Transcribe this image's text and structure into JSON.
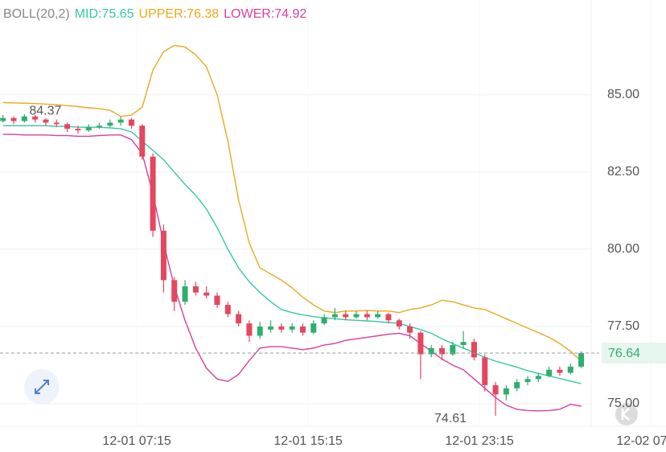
{
  "chart_data": {
    "type": "candlestick",
    "indicator_title": "BOLL(20,2)",
    "x": [
      1,
      1.5,
      2,
      2.5,
      3,
      3.5,
      4,
      4.5,
      5,
      5.5,
      6,
      6.5,
      7,
      7.5,
      8,
      8.5,
      9,
      9.5,
      10,
      10.5,
      11,
      11.5,
      12,
      12.5,
      13,
      13.5,
      14,
      14.5,
      15,
      15.5,
      16,
      16.5,
      17,
      17.5,
      18,
      18.5,
      19,
      19.5,
      20,
      20.5,
      21,
      21.5,
      22,
      22.5,
      23,
      23.5,
      24,
      24.5,
      25,
      25.5,
      26,
      26.5,
      27,
      27.5,
      28
    ],
    "open": [
      84.15,
      84.25,
      84.15,
      84.3,
      84.2,
      84.1,
      84.05,
      83.9,
      83.85,
      83.95,
      84.0,
      84.1,
      84.2,
      84.0,
      83.0,
      80.6,
      79.0,
      78.3,
      78.8,
      78.6,
      78.5,
      78.2,
      77.9,
      77.6,
      77.2,
      77.4,
      77.5,
      77.4,
      77.5,
      77.3,
      77.6,
      77.8,
      77.9,
      77.8,
      77.9,
      77.8,
      77.9,
      77.7,
      77.5,
      77.3,
      76.6,
      76.8,
      76.6,
      76.9,
      77.0,
      76.5,
      75.6,
      75.3,
      75.5,
      75.7,
      75.8,
      75.9,
      76.1,
      76.0,
      76.2
    ],
    "high": [
      84.35,
      84.3,
      84.37,
      84.35,
      84.25,
      84.2,
      84.1,
      84.0,
      84.05,
      84.1,
      84.2,
      84.3,
      84.25,
      84.05,
      83.1,
      80.8,
      79.1,
      79.0,
      78.95,
      78.8,
      78.6,
      78.3,
      78.0,
      77.7,
      77.65,
      77.7,
      77.6,
      77.6,
      77.6,
      77.7,
      77.9,
      78.1,
      78.0,
      78.0,
      78.0,
      78.0,
      77.95,
      77.75,
      77.6,
      77.35,
      76.9,
      76.9,
      77.0,
      77.35,
      77.1,
      76.6,
      75.7,
      75.6,
      75.8,
      75.9,
      76.0,
      76.2,
      76.2,
      76.3,
      76.7
    ],
    "low": [
      84.1,
      84.05,
      84.1,
      84.1,
      84.0,
      83.95,
      83.8,
      83.75,
      83.8,
      83.9,
      83.95,
      84.0,
      83.9,
      82.9,
      80.4,
      78.6,
      78.0,
      78.2,
      78.5,
      78.4,
      78.1,
      77.8,
      77.5,
      77.0,
      77.1,
      77.3,
      77.3,
      77.3,
      77.2,
      77.25,
      77.55,
      77.7,
      77.7,
      77.75,
      77.7,
      77.75,
      77.6,
      77.4,
      77.1,
      75.8,
      76.5,
      76.4,
      76.55,
      76.8,
      76.4,
      75.4,
      74.61,
      75.1,
      75.4,
      75.6,
      75.7,
      75.85,
      75.9,
      75.95,
      76.15
    ],
    "close": [
      84.25,
      84.15,
      84.3,
      84.2,
      84.1,
      84.05,
      83.9,
      83.85,
      83.95,
      84.0,
      84.1,
      84.2,
      84.0,
      83.0,
      80.6,
      79.0,
      78.3,
      78.8,
      78.6,
      78.5,
      78.2,
      77.9,
      77.6,
      77.2,
      77.5,
      77.5,
      77.4,
      77.5,
      77.3,
      77.6,
      77.8,
      77.9,
      77.8,
      77.9,
      77.8,
      77.9,
      77.7,
      77.5,
      77.3,
      76.6,
      76.8,
      76.6,
      76.9,
      77.0,
      76.5,
      75.6,
      75.3,
      75.5,
      75.7,
      75.8,
      75.9,
      76.1,
      76.0,
      76.2,
      76.64
    ],
    "up_color": "#2fae6e",
    "down_color": "#e4475f",
    "series": [
      {
        "label": "MID:75.65",
        "color": "#35c7a5",
        "values": [
          84.0,
          84.0,
          84.0,
          84.0,
          84.0,
          83.98,
          83.98,
          83.95,
          83.95,
          83.95,
          83.93,
          83.9,
          83.8,
          83.5,
          83.2,
          82.9,
          82.5,
          82.1,
          81.75,
          81.3,
          80.7,
          80.0,
          79.4,
          78.95,
          78.6,
          78.3,
          78.05,
          77.95,
          77.88,
          77.82,
          77.78,
          77.75,
          77.72,
          77.7,
          77.68,
          77.66,
          77.63,
          77.6,
          77.5,
          77.4,
          77.28,
          77.1,
          76.95,
          76.8,
          76.65,
          76.5,
          76.38,
          76.28,
          76.18,
          76.07,
          75.98,
          75.9,
          75.82,
          75.73,
          75.65
        ]
      },
      {
        "label": "UPPER:76.38",
        "color": "#e8a91c",
        "values": [
          84.75,
          84.74,
          84.73,
          84.72,
          84.7,
          84.68,
          84.65,
          84.62,
          84.58,
          84.55,
          84.5,
          84.3,
          84.35,
          84.6,
          85.8,
          86.4,
          86.6,
          86.55,
          86.3,
          85.9,
          85.0,
          83.5,
          81.6,
          80.2,
          79.4,
          79.2,
          79.0,
          78.75,
          78.45,
          78.2,
          78.0,
          77.95,
          78.0,
          78.0,
          78.02,
          78.0,
          78.0,
          77.95,
          78.05,
          78.1,
          78.2,
          78.35,
          78.3,
          78.2,
          78.1,
          78.05,
          77.9,
          77.75,
          77.6,
          77.45,
          77.3,
          77.15,
          76.95,
          76.7,
          76.38
        ]
      },
      {
        "label": "LOWER:74.92",
        "color": "#d63fa0",
        "values": [
          83.72,
          83.72,
          83.7,
          83.7,
          83.7,
          83.68,
          83.68,
          83.66,
          83.66,
          83.68,
          83.7,
          83.7,
          83.55,
          83.1,
          81.8,
          80.2,
          78.8,
          77.7,
          76.8,
          76.15,
          75.8,
          75.72,
          75.95,
          76.4,
          76.8,
          76.85,
          76.85,
          76.8,
          76.75,
          76.8,
          76.9,
          76.95,
          77.05,
          77.1,
          77.15,
          77.2,
          77.25,
          77.28,
          77.2,
          76.95,
          76.7,
          76.45,
          76.25,
          76.1,
          75.8,
          75.5,
          75.2,
          74.95,
          74.82,
          74.78,
          74.77,
          74.78,
          74.82,
          74.98,
          74.92
        ]
      }
    ],
    "xlim": [
      0.86,
      31.96
    ],
    "xticks": [
      {
        "value": 7.25,
        "label": "12-01 07:15"
      },
      {
        "value": 15.25,
        "label": "12-01 15:15"
      },
      {
        "value": 23.25,
        "label": "12-01 23:15"
      },
      {
        "value": 31.25,
        "label": "12-02 07:15"
      }
    ],
    "ylim": [
      74.27,
      88.07
    ],
    "yticks": [
      {
        "value": 75,
        "label": "75.00"
      },
      {
        "value": 77.5,
        "label": "77.50"
      },
      {
        "value": 80,
        "label": "80.00"
      },
      {
        "value": 82.5,
        "label": "82.50"
      },
      {
        "value": 85,
        "label": "85.00"
      }
    ],
    "grid": true,
    "last_price": 76.64,
    "high_label": 84.37,
    "low_label": 74.61
  }
}
